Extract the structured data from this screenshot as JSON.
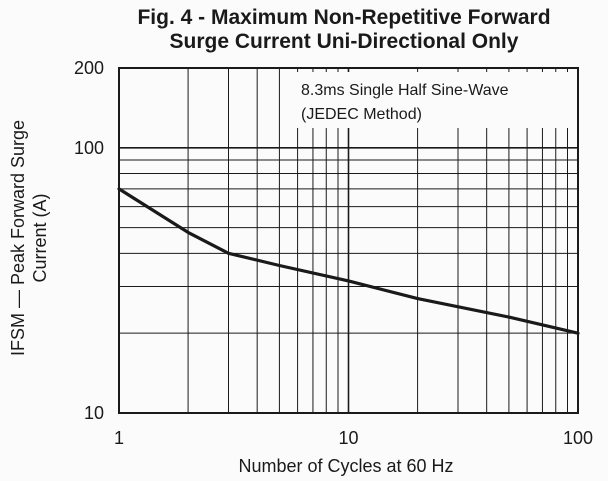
{
  "chart_data": {
    "type": "line",
    "title": "Fig. 4 - Maximum Non-Repetitive Forward",
    "subtitle": "Surge Current Uni-Directional Only",
    "xlabel": "Number of Cycles at 60 Hz",
    "ylabel_line1": "IFSM — Peak Forward Surge",
    "ylabel_line2": "Current (A)",
    "x_scale": "log",
    "y_scale": "log",
    "xlim": [
      1,
      100
    ],
    "ylim": [
      10,
      200
    ],
    "x_ticks": [
      {
        "value": 1,
        "label": "1"
      },
      {
        "value": 10,
        "label": "10"
      },
      {
        "value": 100,
        "label": "100"
      }
    ],
    "y_ticks": [
      {
        "value": 10,
        "label": "10"
      },
      {
        "value": 100,
        "label": "100"
      },
      {
        "value": 200,
        "label": "200"
      }
    ],
    "grid": true,
    "annotation_line1": "8.3ms Single Half Sine-Wave",
    "annotation_line2": "(JEDEC Method)",
    "series": [
      {
        "x": [
          1,
          2,
          3,
          5,
          10,
          20,
          50,
          100
        ],
        "y": [
          70,
          48,
          40,
          36,
          31.5,
          27,
          23,
          20
        ]
      }
    ],
    "colors": {
      "line": "#1a1a1a",
      "grid": "#1a1a1a",
      "background": "#fbfbfb"
    }
  }
}
